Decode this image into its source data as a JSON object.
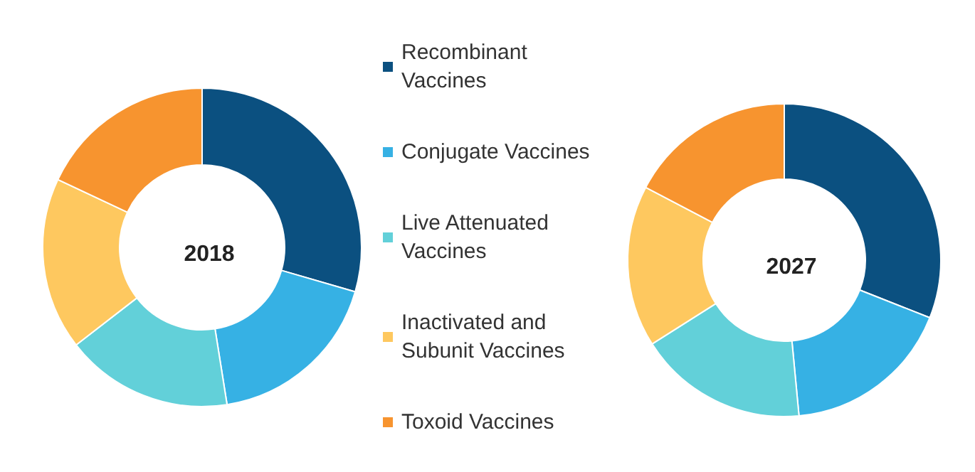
{
  "chart_data": {
    "type": "donut",
    "categories": [
      "Recombinant Vaccines",
      "Conjugate Vaccines",
      "Live Attenuated Vaccines",
      "Inactivated and Subunit Vaccines",
      "Toxoid Vaccines"
    ],
    "colors": [
      "#0b5080",
      "#36b1e4",
      "#62d0d9",
      "#fec85f",
      "#f7942f"
    ],
    "legend": "right",
    "series": [
      {
        "name": "2018",
        "values": [
          29.5,
          18,
          17,
          17.5,
          18
        ]
      },
      {
        "name": "2027",
        "values": [
          31,
          17.5,
          17.5,
          16.7,
          17.3
        ]
      }
    ]
  }
}
